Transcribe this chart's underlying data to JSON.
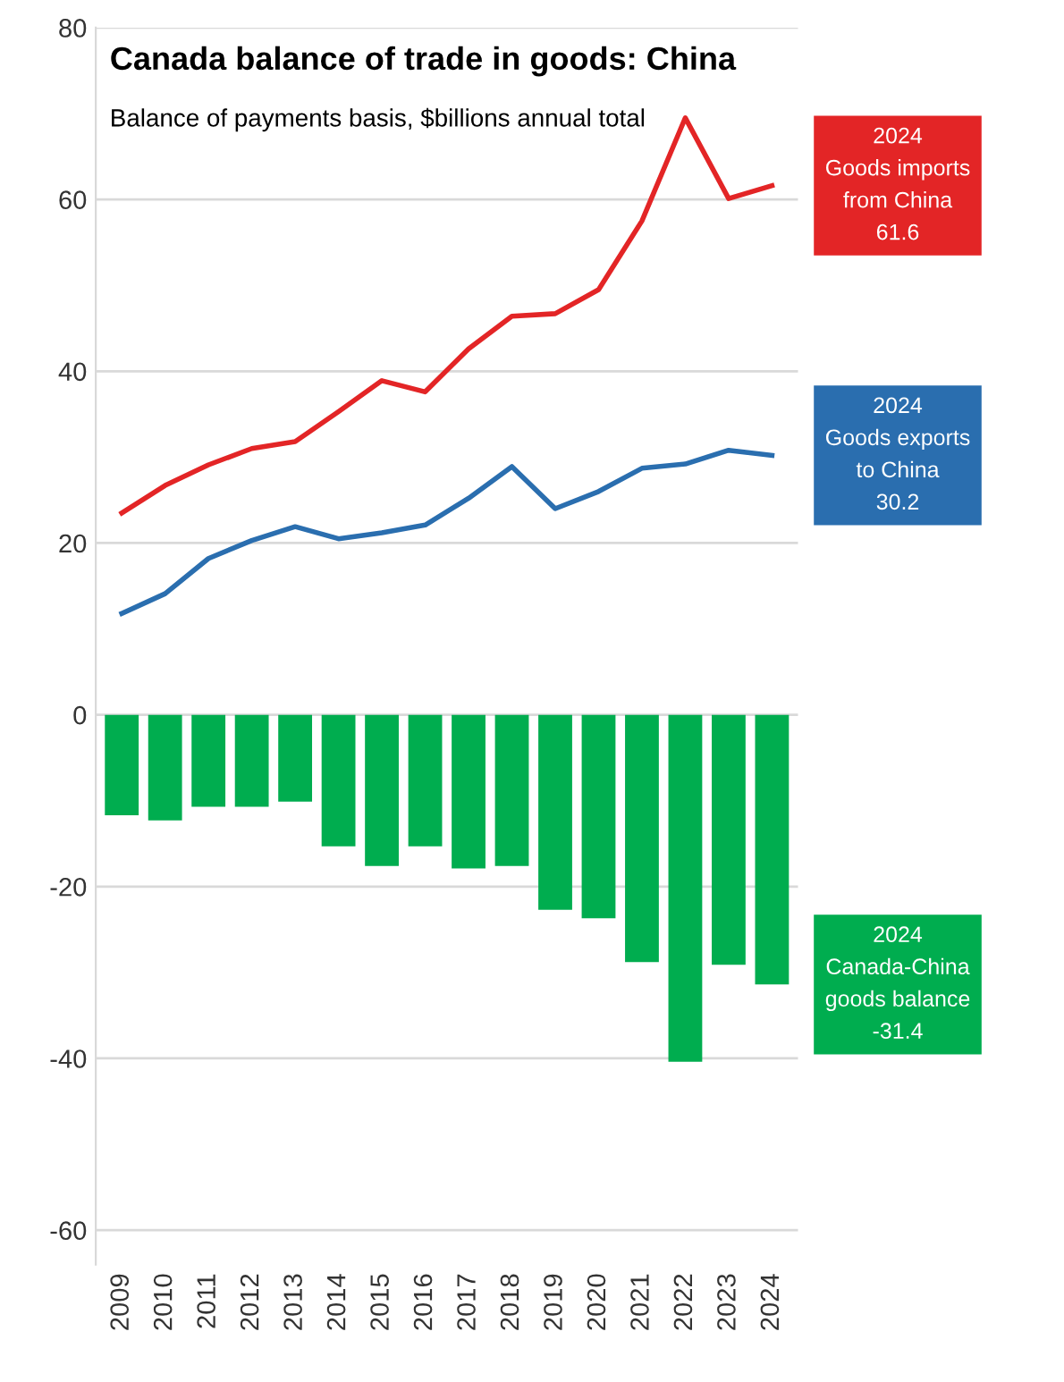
{
  "chart_data": {
    "type": "bar",
    "title": "Canada balance of trade in goods: China",
    "subtitle": "Balance of payments basis, $billions annual total",
    "categories": [
      "2009",
      "2010",
      "2011",
      "2012",
      "2013",
      "2014",
      "2015",
      "2016",
      "2017",
      "2018",
      "2019",
      "2020",
      "2021",
      "2022",
      "2023",
      "2024"
    ],
    "series": [
      {
        "type": "line",
        "color": "#e32526",
        "values": [
          23.5,
          26.7,
          29.1,
          31.0,
          31.8,
          35.3,
          38.9,
          37.6,
          42.6,
          46.4,
          46.7,
          49.5,
          57.5,
          69.5,
          60.1,
          61.6
        ]
      },
      {
        "type": "line",
        "color": "#2a6eaf",
        "values": [
          11.8,
          14.1,
          18.2,
          20.3,
          21.9,
          20.5,
          21.2,
          22.1,
          25.2,
          28.9,
          24.0,
          26.0,
          28.7,
          29.2,
          30.8,
          30.2
        ]
      },
      {
        "color": "#00ad4f",
        "values": [
          -11.7,
          -12.3,
          -10.7,
          -10.7,
          -10.1,
          -15.3,
          -17.6,
          -15.3,
          -17.9,
          -17.6,
          -22.7,
          -23.7,
          -28.8,
          -40.4,
          -29.1,
          -31.4
        ]
      }
    ],
    "annotations": [
      {
        "text": "2024\nGoods imports\nfrom China\n61.6",
        "x": "2024",
        "y": 61.6
      },
      {
        "text": "2024\nGoods exports\nto China\n30.2",
        "x": "2024",
        "y": 30.2
      },
      {
        "text": "2024\nCanada-China\ngoods balance\n-31.4",
        "x": "2024",
        "y": -31.4
      }
    ],
    "ylim": [
      -64,
      80
    ],
    "yticks": [
      -60,
      -40,
      -20,
      0,
      20,
      40,
      60,
      80
    ],
    "grid": "y",
    "legend": false
  }
}
